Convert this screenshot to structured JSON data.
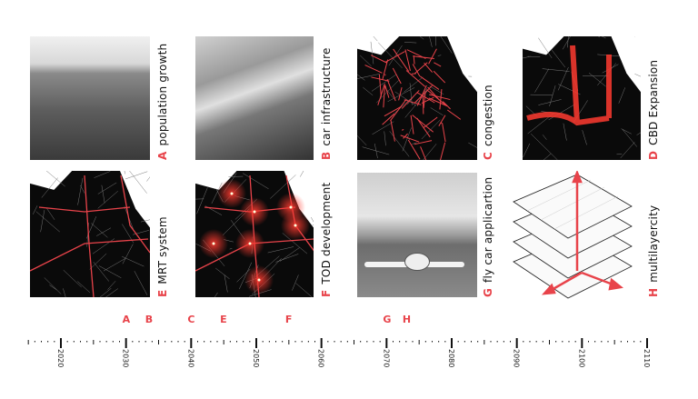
{
  "panels": [
    {
      "letter": "A",
      "label": "population growth",
      "kind": "photo"
    },
    {
      "letter": "B",
      "label": "car infrastructure",
      "kind": "photo"
    },
    {
      "letter": "C",
      "label": "congestion",
      "kind": "map"
    },
    {
      "letter": "D",
      "label": "CBD Expansion",
      "kind": "map"
    },
    {
      "letter": "E",
      "label": "MRT system",
      "kind": "map"
    },
    {
      "letter": "F",
      "label": "TOD development",
      "kind": "map"
    },
    {
      "letter": "G",
      "label": "fly car applicartion",
      "kind": "photo"
    },
    {
      "letter": "H",
      "label": "multilayercity",
      "kind": "diagram"
    }
  ],
  "timeline": {
    "years": [
      "2020",
      "2030",
      "2040",
      "2050",
      "2060",
      "2070",
      "2080",
      "2090",
      "2100",
      "2110"
    ],
    "markers": [
      {
        "letter": "A",
        "year": 2030
      },
      {
        "letter": "B",
        "year": 2033.5
      },
      {
        "letter": "C",
        "year": 2040
      },
      {
        "letter": "E",
        "year": 2045
      },
      {
        "letter": "F",
        "year": 2055
      },
      {
        "letter": "G",
        "year": 2070
      },
      {
        "letter": "H",
        "year": 2073
      }
    ]
  },
  "colors": {
    "accent": "#e8434a",
    "map_bg": "#0a0a0a",
    "line": "#111111"
  }
}
